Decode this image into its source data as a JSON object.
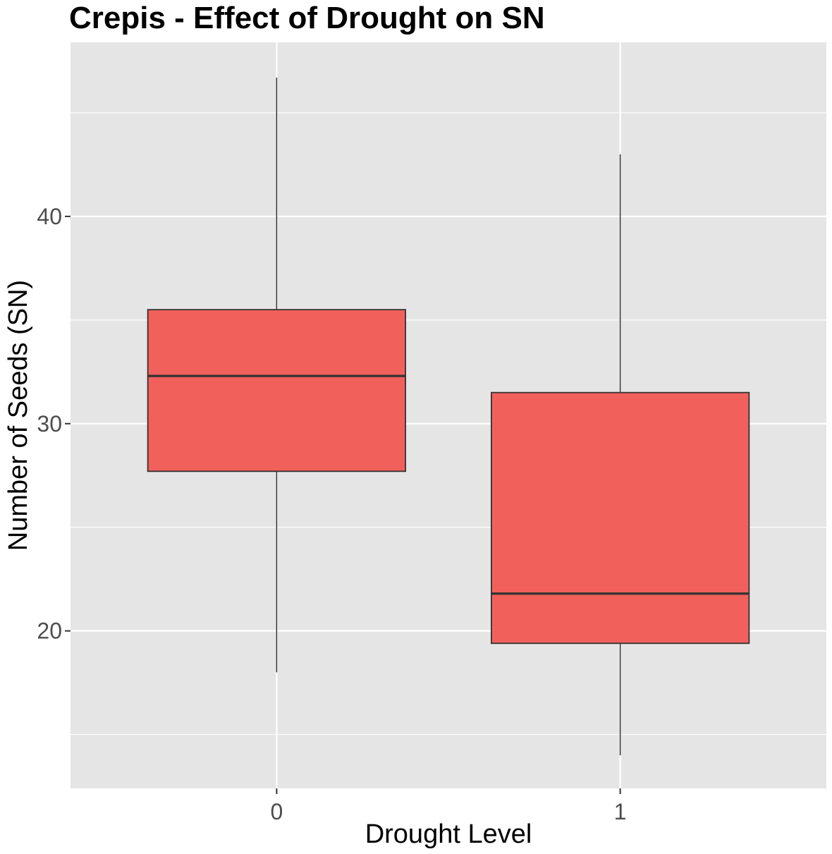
{
  "chart_data": {
    "type": "box",
    "title": "Crepis - Effect of Drought on SN",
    "xlabel": "Drought Level",
    "ylabel": "Number of Seeds (SN)",
    "categories": [
      "0",
      "1"
    ],
    "yticks": [
      20,
      30,
      40
    ],
    "ylim": [
      12.4,
      48.4
    ],
    "grid": true,
    "legend": "none",
    "box_fill": "#f2605c",
    "box_stroke": "#333333",
    "panel_bg": "#e5e5e5",
    "grid_color": "#ffffff",
    "boxes": [
      {
        "category": "0",
        "whisker_low": 18.0,
        "q1": 27.7,
        "median": 32.3,
        "q3": 35.5,
        "whisker_high": 46.7
      },
      {
        "category": "1",
        "whisker_low": 14.0,
        "q1": 19.4,
        "median": 21.8,
        "q3": 31.5,
        "whisker_high": 43.0
      }
    ]
  }
}
